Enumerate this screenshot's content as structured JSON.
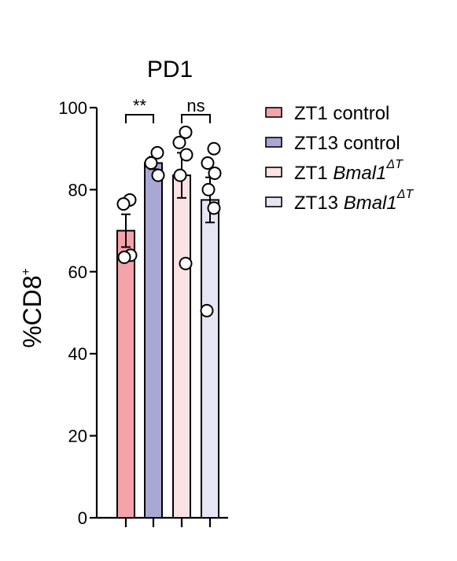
{
  "chart_data": {
    "type": "bar",
    "title": "PD1",
    "ylabel": "%CD8",
    "ylabel_sup": "+",
    "ylim": [
      0,
      100
    ],
    "yticks": [
      "0",
      "20",
      "40",
      "60",
      "80",
      "100"
    ],
    "grid": false,
    "legend_placement": "right",
    "series": [
      {
        "name": "ZT1 control",
        "name_italic": "",
        "name_sup": "",
        "value": 70,
        "error": 4,
        "points": [
          77.5,
          76.5,
          64,
          63.5
        ],
        "fill": "#f4a3aa",
        "stroke": "#000000"
      },
      {
        "name": "ZT13 control",
        "name_italic": "",
        "name_sup": "",
        "value": 86.5,
        "error": 1.5,
        "points": [
          89,
          86.5,
          83.5
        ],
        "fill": "#a9a7d4",
        "stroke": "#000000"
      },
      {
        "name": "ZT1 ",
        "name_italic": "Bmal1",
        "name_sup": "ΔT",
        "value": 83.5,
        "error": 5.5,
        "points": [
          94,
          91.5,
          88.5,
          83.5,
          62
        ],
        "fill": "#fbe2e3",
        "stroke": "#000000"
      },
      {
        "name": "ZT13 ",
        "name_italic": "Bmal1",
        "name_sup": "ΔT",
        "value": 77.5,
        "error": 5.5,
        "points": [
          90,
          86.5,
          84,
          80,
          75.5,
          50.5
        ],
        "fill": "#e6e5f3",
        "stroke": "#000000"
      }
    ],
    "annotations": [
      {
        "text": "**",
        "between": [
          0,
          1
        ]
      },
      {
        "text": "ns",
        "between": [
          2,
          3
        ]
      }
    ]
  }
}
